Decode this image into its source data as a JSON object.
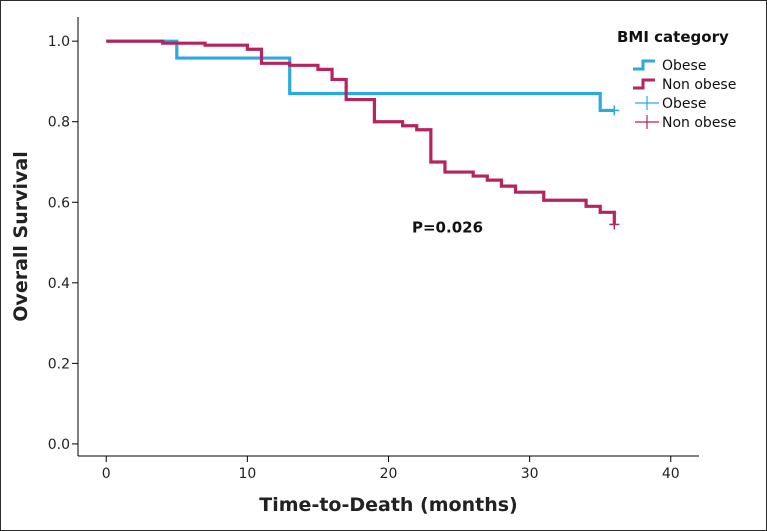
{
  "chart_data": {
    "type": "line",
    "subtype": "kaplan-meier",
    "title": "",
    "xlabel": "Time-to-Death (months)",
    "ylabel": "Overall Survival",
    "xlim": [
      -2,
      42
    ],
    "ylim": [
      -0.03,
      1.06
    ],
    "xticks": [
      0,
      10,
      20,
      30,
      40
    ],
    "xtick_labels": [
      "0",
      "10",
      "20",
      "30",
      "40"
    ],
    "yticks": [
      0.0,
      0.2,
      0.4,
      0.6,
      0.8,
      1.0
    ],
    "ytick_labels": [
      "0.0",
      "0.2",
      "0.4",
      "0.6",
      "0.8",
      "1.0"
    ],
    "legend": {
      "title": "BMI category",
      "placement": "top-right",
      "entries": [
        {
          "label": "Obese",
          "kind": "line",
          "color": "#29abe2"
        },
        {
          "label": "Non obese",
          "kind": "line",
          "color": "#b5245e"
        },
        {
          "label": "Obese",
          "kind": "censor",
          "color": "#29abe2"
        },
        {
          "label": "Non obese",
          "kind": "censor",
          "color": "#b5245e"
        }
      ]
    },
    "annotation": {
      "text": "P=0.026",
      "x": 24.5,
      "y": 0.525
    },
    "series": [
      {
        "name": "Obese",
        "color": "#29abe2",
        "steps": [
          [
            0,
            1.0
          ],
          [
            5,
            0.958
          ],
          [
            13,
            0.87
          ],
          [
            35,
            0.828
          ],
          [
            36,
            0.828
          ]
        ],
        "censored": [
          [
            36,
            0.828
          ]
        ]
      },
      {
        "name": "Non obese",
        "color": "#b5245e",
        "steps": [
          [
            0,
            1.0
          ],
          [
            4,
            0.995
          ],
          [
            7,
            0.99
          ],
          [
            10,
            0.98
          ],
          [
            11,
            0.945
          ],
          [
            13,
            0.94
          ],
          [
            15,
            0.93
          ],
          [
            16,
            0.905
          ],
          [
            17,
            0.855
          ],
          [
            19,
            0.8
          ],
          [
            21,
            0.79
          ],
          [
            22,
            0.78
          ],
          [
            23,
            0.7
          ],
          [
            24,
            0.675
          ],
          [
            26,
            0.665
          ],
          [
            27,
            0.655
          ],
          [
            28,
            0.64
          ],
          [
            29,
            0.625
          ],
          [
            31,
            0.605
          ],
          [
            34,
            0.59
          ],
          [
            35,
            0.575
          ],
          [
            36,
            0.545
          ]
        ],
        "censored": [
          [
            36,
            0.545
          ]
        ]
      }
    ]
  }
}
